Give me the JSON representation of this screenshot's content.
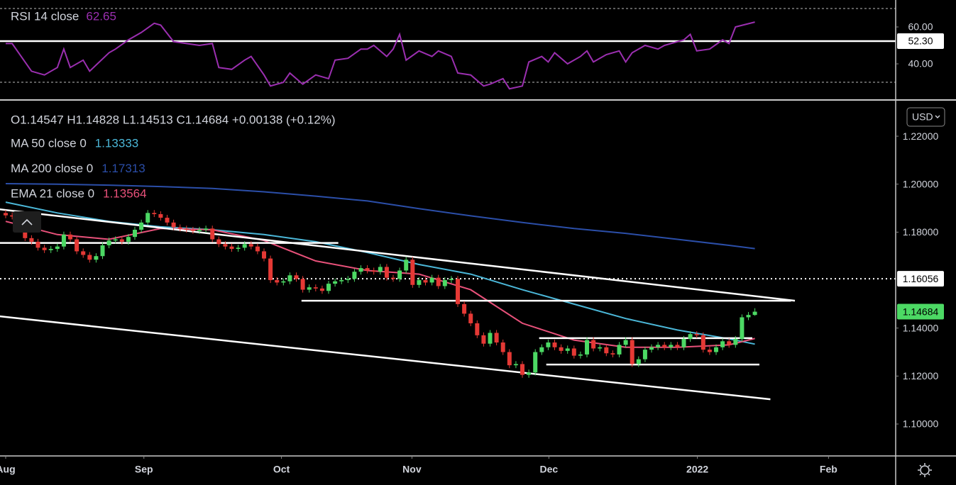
{
  "chart_data": [
    {
      "type": "line",
      "series": [
        {
          "name": "RSI 14 close",
          "color": "#9b2fb0",
          "x": [
            0,
            1,
            4,
            6,
            8,
            9,
            10,
            12,
            13,
            16,
            17,
            19,
            21,
            23,
            24,
            26,
            28,
            30,
            32,
            33,
            35,
            37,
            38,
            40,
            41,
            43,
            44,
            45,
            46,
            48,
            50,
            51,
            53,
            55,
            56,
            57,
            59,
            60,
            61,
            62,
            64,
            66,
            67,
            69,
            70,
            72,
            74,
            75,
            77,
            78,
            80,
            81,
            83,
            84,
            85,
            87,
            89,
            90,
            91,
            93,
            95,
            96,
            97,
            99,
            101,
            102,
            104,
            105,
            106,
            107,
            109,
            111,
            112,
            113,
            116
          ],
          "values": [
            51,
            51,
            36,
            34,
            38,
            48,
            38,
            42,
            36,
            46,
            48,
            53,
            57,
            62,
            61,
            52,
            51,
            50,
            51,
            38,
            37,
            42,
            44,
            34,
            28,
            30,
            35,
            32,
            29,
            34,
            32,
            42,
            43,
            48,
            48,
            50,
            44,
            48,
            56,
            42,
            47,
            44,
            47,
            44,
            35,
            34,
            28,
            29,
            32,
            26.5,
            28,
            41,
            44,
            41,
            46,
            40,
            44,
            47,
            41,
            45,
            47,
            41,
            46,
            50,
            48,
            50,
            52,
            53,
            56,
            47,
            48,
            53,
            51,
            60,
            62.65
          ]
        }
      ],
      "xlim": [
        -0.88,
        137.8
      ],
      "ylim": [
        20.8,
        74.6
      ],
      "yticks": [
        {
          "value": 60,
          "label": "60.00"
        },
        {
          "value": 40,
          "label": "40.00"
        }
      ],
      "bands": [
        30,
        70
      ],
      "level": {
        "value": 52.3,
        "label": "52.30"
      }
    },
    {
      "type": "candlestick",
      "ohlc_label": "O1.14547 H1.14828 L1.14513 C1.14684 +0.00138 (+0.12%)",
      "currency": "USD",
      "up_color": "#4cd964",
      "down_color": "#e53935",
      "open": [
        1.188,
        1.187,
        1.1865,
        1.185,
        1.1775,
        1.176,
        1.1735,
        1.1725,
        1.173,
        1.174,
        1.179,
        1.177,
        1.172,
        1.1705,
        1.1685,
        1.17,
        1.1745,
        1.1765,
        1.177,
        1.176,
        1.178,
        1.181,
        1.184,
        1.188,
        1.1875,
        1.186,
        1.184,
        1.182,
        1.1815,
        1.181,
        1.1805,
        1.181,
        1.1815,
        1.177,
        1.175,
        1.174,
        1.173,
        1.1735,
        1.175,
        1.174,
        1.172,
        1.169,
        1.16,
        1.159,
        1.1595,
        1.162,
        1.1605,
        1.156,
        1.157,
        1.1565,
        1.1555,
        1.1585,
        1.1595,
        1.16,
        1.1605,
        1.1635,
        1.165,
        1.164,
        1.1635,
        1.1655,
        1.161,
        1.1605,
        1.164,
        1.1685,
        1.158,
        1.16,
        1.159,
        1.161,
        1.1575,
        1.16,
        1.1605,
        1.15,
        1.146,
        1.142,
        1.137,
        1.1335,
        1.138,
        1.134,
        1.13,
        1.1245,
        1.125,
        1.1205,
        1.1215,
        1.13,
        1.132,
        1.134,
        1.132,
        1.1305,
        1.1315,
        1.1285,
        1.129,
        1.135,
        1.1315,
        1.132,
        1.1295,
        1.129,
        1.133,
        1.135,
        1.125,
        1.127,
        1.131,
        1.132,
        1.133,
        1.132,
        1.133,
        1.132,
        1.1355,
        1.1375,
        1.137,
        1.131,
        1.13,
        1.132,
        1.1345,
        1.133,
        1.1355,
        1.1445,
        1.14547
      ],
      "high": [
        1.1892,
        1.1882,
        1.1877,
        1.1862,
        1.1787,
        1.1772,
        1.1747,
        1.1742,
        1.1752,
        1.1802,
        1.1802,
        1.1782,
        1.1732,
        1.1717,
        1.1712,
        1.1757,
        1.1777,
        1.1782,
        1.1782,
        1.1792,
        1.1822,
        1.1852,
        1.1892,
        1.1892,
        1.1887,
        1.1872,
        1.1852,
        1.1832,
        1.1827,
        1.1822,
        1.1822,
        1.1827,
        1.1827,
        1.1782,
        1.1762,
        1.1752,
        1.1747,
        1.1762,
        1.1762,
        1.1752,
        1.1732,
        1.1702,
        1.1612,
        1.1607,
        1.1632,
        1.1632,
        1.1617,
        1.1582,
        1.1582,
        1.1577,
        1.1597,
        1.1607,
        1.1612,
        1.1617,
        1.1647,
        1.1662,
        1.1662,
        1.1652,
        1.1667,
        1.1667,
        1.1622,
        1.1652,
        1.1697,
        1.1697,
        1.1612,
        1.1612,
        1.1622,
        1.1622,
        1.1612,
        1.1617,
        1.1617,
        1.1512,
        1.1472,
        1.1432,
        1.1382,
        1.1392,
        1.1392,
        1.1352,
        1.1312,
        1.1262,
        1.1262,
        1.1227,
        1.1312,
        1.1332,
        1.1352,
        1.1352,
        1.1332,
        1.1327,
        1.1327,
        1.1302,
        1.1362,
        1.1362,
        1.1332,
        1.1332,
        1.1307,
        1.1342,
        1.1362,
        1.1362,
        1.1282,
        1.1322,
        1.1332,
        1.1342,
        1.1342,
        1.1342,
        1.1342,
        1.1367,
        1.1387,
        1.1387,
        1.1382,
        1.1322,
        1.1332,
        1.1357,
        1.1357,
        1.1367,
        1.1457,
        1.1467,
        1.14828
      ],
      "low": [
        1.1858,
        1.1853,
        1.1838,
        1.1763,
        1.1748,
        1.1723,
        1.1713,
        1.1713,
        1.1718,
        1.1728,
        1.1758,
        1.1708,
        1.1693,
        1.1673,
        1.1673,
        1.1688,
        1.1733,
        1.1753,
        1.1748,
        1.1748,
        1.1768,
        1.1798,
        1.1828,
        1.1863,
        1.1848,
        1.1828,
        1.1808,
        1.1803,
        1.1798,
        1.1793,
        1.1793,
        1.1798,
        1.1758,
        1.1738,
        1.1728,
        1.1718,
        1.1718,
        1.1723,
        1.1728,
        1.1708,
        1.1678,
        1.1588,
        1.1578,
        1.1578,
        1.1583,
        1.1593,
        1.1548,
        1.1548,
        1.1553,
        1.1543,
        1.1543,
        1.1573,
        1.1583,
        1.1588,
        1.1593,
        1.1623,
        1.1628,
        1.1623,
        1.1623,
        1.1598,
        1.1593,
        1.1593,
        1.1628,
        1.1568,
        1.1568,
        1.1578,
        1.1578,
        1.1563,
        1.1563,
        1.1588,
        1.1488,
        1.1448,
        1.1408,
        1.1358,
        1.1323,
        1.1323,
        1.1328,
        1.1288,
        1.1233,
        1.1233,
        1.1193,
        1.1193,
        1.1203,
        1.1288,
        1.1308,
        1.1308,
        1.1293,
        1.1293,
        1.1273,
        1.1273,
        1.1278,
        1.1303,
        1.1303,
        1.1283,
        1.1278,
        1.1278,
        1.1318,
        1.1238,
        1.1238,
        1.1258,
        1.1298,
        1.1308,
        1.1308,
        1.1308,
        1.1308,
        1.1308,
        1.1343,
        1.1358,
        1.1298,
        1.1288,
        1.1288,
        1.1308,
        1.1318,
        1.1318,
        1.1343,
        1.1433,
        1.14513
      ],
      "close": [
        1.187,
        1.1865,
        1.185,
        1.1775,
        1.176,
        1.1735,
        1.1725,
        1.173,
        1.174,
        1.179,
        1.177,
        1.172,
        1.1705,
        1.1685,
        1.17,
        1.1745,
        1.1765,
        1.177,
        1.176,
        1.178,
        1.181,
        1.184,
        1.188,
        1.1875,
        1.186,
        1.184,
        1.182,
        1.1815,
        1.181,
        1.1805,
        1.181,
        1.1815,
        1.177,
        1.175,
        1.174,
        1.173,
        1.1735,
        1.175,
        1.174,
        1.172,
        1.169,
        1.16,
        1.159,
        1.1595,
        1.162,
        1.1605,
        1.156,
        1.157,
        1.1565,
        1.1555,
        1.1585,
        1.1595,
        1.16,
        1.1605,
        1.1635,
        1.165,
        1.164,
        1.1635,
        1.1655,
        1.161,
        1.1605,
        1.164,
        1.1685,
        1.158,
        1.16,
        1.159,
        1.161,
        1.1575,
        1.16,
        1.1605,
        1.15,
        1.146,
        1.142,
        1.137,
        1.1335,
        1.138,
        1.134,
        1.13,
        1.1245,
        1.125,
        1.1205,
        1.1215,
        1.13,
        1.132,
        1.134,
        1.132,
        1.1305,
        1.1315,
        1.1285,
        1.129,
        1.135,
        1.1315,
        1.132,
        1.1295,
        1.129,
        1.133,
        1.135,
        1.125,
        1.127,
        1.131,
        1.132,
        1.133,
        1.132,
        1.133,
        1.132,
        1.1355,
        1.1375,
        1.137,
        1.131,
        1.13,
        1.132,
        1.1345,
        1.133,
        1.1355,
        1.1445,
        1.14547,
        1.14684
      ],
      "series": [
        {
          "name": "MA 50 close 0",
          "color": "#4bb7d8",
          "x": [
            0,
            8,
            16,
            24,
            32,
            40,
            48,
            56,
            64,
            72,
            80,
            88,
            96,
            104,
            112,
            116
          ],
          "values": [
            1.1925,
            1.188,
            1.1845,
            1.1822,
            1.181,
            1.179,
            1.176,
            1.1715,
            1.1665,
            1.1625,
            1.156,
            1.15,
            1.144,
            1.1392,
            1.1355,
            1.13333
          ]
        },
        {
          "name": "MA 200 close 0",
          "color": "#2b4ea8",
          "x": [
            0,
            8,
            16,
            24,
            32,
            40,
            48,
            56,
            64,
            72,
            80,
            88,
            96,
            104,
            112,
            116
          ],
          "values": [
            1.2002,
            1.2,
            1.1996,
            1.199,
            1.1982,
            1.1968,
            1.195,
            1.193,
            1.1898,
            1.1868,
            1.184,
            1.1815,
            1.1795,
            1.177,
            1.1745,
            1.17313
          ]
        },
        {
          "name": "EMA 21 close 0",
          "color": "#e8517a",
          "x": [
            0,
            8,
            16,
            24,
            32,
            40,
            48,
            56,
            64,
            72,
            80,
            88,
            96,
            104,
            112,
            116
          ],
          "values": [
            1.1845,
            1.179,
            1.177,
            1.1815,
            1.181,
            1.1765,
            1.168,
            1.164,
            1.1625,
            1.156,
            1.142,
            1.135,
            1.132,
            1.132,
            1.133,
            1.13564
          ]
        }
      ],
      "price_line": 1.16056,
      "trend_lines": [
        {
          "x": [
            -0.9,
            122.2
          ],
          "y": [
            1.1895,
            1.1514
          ]
        },
        {
          "x": [
            -0.9,
            118.4
          ],
          "y": [
            1.1449,
            1.1103
          ]
        },
        {
          "x": [
            -0.9,
            51.5
          ],
          "y": [
            1.1755,
            1.1755
          ]
        },
        {
          "x": [
            45.8,
            121.6
          ],
          "y": [
            1.1514,
            1.1514
          ]
        },
        {
          "x": [
            82.6,
            115.6
          ],
          "y": [
            1.1358,
            1.1358
          ]
        },
        {
          "x": [
            83.7,
            116.7
          ],
          "y": [
            1.1248,
            1.1248
          ]
        }
      ],
      "xlim": [
        -0.88,
        137.8
      ],
      "xticks": [
        {
          "value": 0,
          "label": "Aug"
        },
        {
          "value": 21.4,
          "label": "Sep"
        },
        {
          "value": 42.7,
          "label": "Oct"
        },
        {
          "value": 62.9,
          "label": "Nov"
        },
        {
          "value": 84.1,
          "label": "Dec"
        },
        {
          "value": 107.1,
          "label": "2022"
        },
        {
          "value": 127.4,
          "label": "Feb"
        }
      ],
      "ylim": [
        1.0867,
        1.2348
      ],
      "yticks": [
        {
          "value": 1.22,
          "label": "1.22000"
        },
        {
          "value": 1.2,
          "label": "1.20000"
        },
        {
          "value": 1.18,
          "label": "1.18000"
        },
        {
          "value": 1.14,
          "label": "1.14000"
        },
        {
          "value": 1.12,
          "label": "1.12000"
        },
        {
          "value": 1.1,
          "label": "1.10000"
        }
      ]
    }
  ]
}
